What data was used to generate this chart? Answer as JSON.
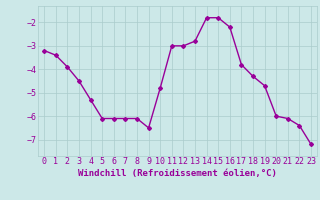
{
  "x": [
    0,
    1,
    2,
    3,
    4,
    5,
    6,
    7,
    8,
    9,
    10,
    11,
    12,
    13,
    14,
    15,
    16,
    17,
    18,
    19,
    20,
    21,
    22,
    23
  ],
  "y": [
    -3.2,
    -3.4,
    -3.9,
    -4.5,
    -5.3,
    -6.1,
    -6.1,
    -6.1,
    -6.1,
    -6.5,
    -4.8,
    -3.0,
    -3.0,
    -2.8,
    -1.8,
    -1.8,
    -2.2,
    -3.8,
    -4.3,
    -4.7,
    -6.0,
    -6.1,
    -6.4,
    -7.2
  ],
  "line_color": "#990099",
  "marker": "D",
  "markersize": 2.0,
  "linewidth": 1.0,
  "bg_color": "#cce8e8",
  "grid_color": "#aacccc",
  "axis_color": "#990099",
  "xlabel": "Windchill (Refroidissement éolien,°C)",
  "xlabel_fontsize": 6.5,
  "tick_fontsize": 6,
  "xlim": [
    -0.5,
    23.5
  ],
  "ylim": [
    -7.7,
    -1.3
  ],
  "yticks": [
    -7,
    -6,
    -5,
    -4,
    -3,
    -2
  ],
  "xticks": [
    0,
    1,
    2,
    3,
    4,
    5,
    6,
    7,
    8,
    9,
    10,
    11,
    12,
    13,
    14,
    15,
    16,
    17,
    18,
    19,
    20,
    21,
    22,
    23
  ]
}
